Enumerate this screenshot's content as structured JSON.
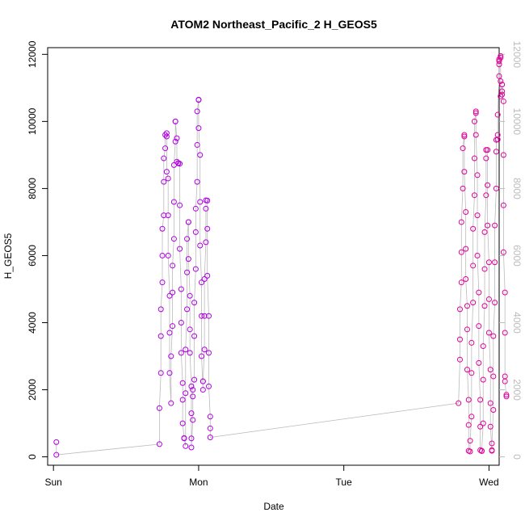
{
  "chart_data": {
    "type": "scatter",
    "title": "ATOM2 Northeast_Pacific_2 H_GEOS5",
    "xlabel": "Date",
    "ylabel": "H_GEOS5",
    "x_unit": "days",
    "xlim": [
      -0.04,
      3.07
    ],
    "ylim": [
      -250,
      12200
    ],
    "x_ticks": [
      {
        "value": 0,
        "label": "Sun"
      },
      {
        "value": 1,
        "label": "Mon"
      },
      {
        "value": 2,
        "label": "Tue"
      },
      {
        "value": 3,
        "label": "Wed"
      }
    ],
    "y_ticks": [
      0,
      2000,
      4000,
      6000,
      8000,
      10000,
      12000
    ],
    "y_ticks_right": [
      0,
      2000,
      4000,
      6000,
      8000,
      10000,
      12000
    ],
    "grid": false,
    "legend": "none",
    "colors": {
      "line": "#bbbbbb",
      "point_early": "#b000e0",
      "point_late": "#e0009a",
      "right_axis": "#bbbbbb"
    },
    "series": [
      {
        "values": [
          [
            0.02,
            440
          ],
          [
            0.02,
            60
          ],
          [
            0.73,
            380
          ],
          [
            0.73,
            1450
          ],
          [
            0.74,
            2500
          ],
          [
            0.74,
            3600
          ],
          [
            0.74,
            4400
          ],
          [
            0.75,
            5200
          ],
          [
            0.75,
            6000
          ],
          [
            0.75,
            6800
          ],
          [
            0.76,
            7200
          ],
          [
            0.76,
            8200
          ],
          [
            0.76,
            8900
          ],
          [
            0.77,
            9200
          ],
          [
            0.77,
            9600
          ],
          [
            0.78,
            9650
          ],
          [
            0.78,
            9550
          ],
          [
            0.78,
            8500
          ],
          [
            0.79,
            8300
          ],
          [
            0.79,
            7200
          ],
          [
            0.79,
            6000
          ],
          [
            0.8,
            4800
          ],
          [
            0.8,
            3700
          ],
          [
            0.8,
            2500
          ],
          [
            0.81,
            1600
          ],
          [
            0.81,
            3000
          ],
          [
            0.82,
            3900
          ],
          [
            0.82,
            4900
          ],
          [
            0.82,
            5700
          ],
          [
            0.83,
            6500
          ],
          [
            0.83,
            7600
          ],
          [
            0.83,
            8700
          ],
          [
            0.84,
            9400
          ],
          [
            0.84,
            10000
          ],
          [
            0.84,
            10000
          ],
          [
            0.85,
            9500
          ],
          [
            0.85,
            8800
          ],
          [
            0.86,
            8750
          ],
          [
            0.86,
            8760
          ],
          [
            0.87,
            8740
          ],
          [
            0.87,
            7500
          ],
          [
            0.87,
            6200
          ],
          [
            0.88,
            5000
          ],
          [
            0.88,
            4000
          ],
          [
            0.88,
            3100
          ],
          [
            0.89,
            2200
          ],
          [
            0.89,
            1700
          ],
          [
            0.89,
            1000
          ],
          [
            0.9,
            560
          ],
          [
            0.9,
            550
          ],
          [
            0.91,
            320
          ],
          [
            0.91,
            1900
          ],
          [
            0.91,
            3200
          ],
          [
            0.92,
            4400
          ],
          [
            0.92,
            5500
          ],
          [
            0.92,
            6500
          ],
          [
            0.93,
            7000
          ],
          [
            0.93,
            7000
          ],
          [
            0.93,
            5900
          ],
          [
            0.94,
            4800
          ],
          [
            0.94,
            3800
          ],
          [
            0.94,
            3100
          ],
          [
            0.95,
            2100
          ],
          [
            0.95,
            1300
          ],
          [
            0.95,
            550
          ],
          [
            0.95,
            280
          ],
          [
            0.96,
            1100
          ],
          [
            0.96,
            1800
          ],
          [
            0.96,
            2000
          ],
          [
            0.97,
            2300
          ],
          [
            0.97,
            3600
          ],
          [
            0.97,
            4600
          ],
          [
            0.98,
            5600
          ],
          [
            0.98,
            6700
          ],
          [
            0.98,
            7400
          ],
          [
            0.99,
            8200
          ],
          [
            0.99,
            9300
          ],
          [
            0.99,
            10300
          ],
          [
            1.0,
            10650
          ],
          [
            1.0,
            10640
          ],
          [
            1.0,
            9800
          ],
          [
            1.01,
            9000
          ],
          [
            1.01,
            7600
          ],
          [
            1.01,
            6300
          ],
          [
            1.02,
            5200
          ],
          [
            1.02,
            4200
          ],
          [
            1.02,
            3000
          ],
          [
            1.03,
            2000
          ],
          [
            1.03,
            2250
          ],
          [
            1.03,
            2250
          ],
          [
            1.04,
            3200
          ],
          [
            1.04,
            4200
          ],
          [
            1.04,
            5300
          ],
          [
            1.05,
            6400
          ],
          [
            1.05,
            7400
          ],
          [
            1.05,
            7650
          ],
          [
            1.06,
            7640
          ],
          [
            1.06,
            6800
          ],
          [
            1.06,
            5400
          ],
          [
            1.07,
            4200
          ],
          [
            1.07,
            3100
          ],
          [
            1.07,
            2100
          ],
          [
            1.08,
            1200
          ],
          [
            1.08,
            850
          ],
          [
            1.08,
            580
          ],
          [
            2.79,
            1600
          ],
          [
            2.8,
            2900
          ],
          [
            2.8,
            3500
          ],
          [
            2.8,
            4400
          ],
          [
            2.81,
            5200
          ],
          [
            2.81,
            6100
          ],
          [
            2.81,
            7000
          ],
          [
            2.82,
            8000
          ],
          [
            2.82,
            9200
          ],
          [
            2.83,
            9600
          ],
          [
            2.83,
            9550
          ],
          [
            2.83,
            8500
          ],
          [
            2.84,
            7300
          ],
          [
            2.84,
            6200
          ],
          [
            2.84,
            5300
          ],
          [
            2.85,
            4500
          ],
          [
            2.85,
            3800
          ],
          [
            2.85,
            2600
          ],
          [
            2.86,
            1700
          ],
          [
            2.86,
            950
          ],
          [
            2.86,
            180
          ],
          [
            2.87,
            160
          ],
          [
            2.87,
            480
          ],
          [
            2.88,
            1200
          ],
          [
            2.88,
            2500
          ],
          [
            2.88,
            3400
          ],
          [
            2.89,
            4600
          ],
          [
            2.89,
            5700
          ],
          [
            2.89,
            6800
          ],
          [
            2.9,
            7800
          ],
          [
            2.9,
            8900
          ],
          [
            2.9,
            10000
          ],
          [
            2.91,
            10300
          ],
          [
            2.91,
            10250
          ],
          [
            2.91,
            9600
          ],
          [
            2.92,
            8400
          ],
          [
            2.92,
            7200
          ],
          [
            2.92,
            6000
          ],
          [
            2.93,
            4900
          ],
          [
            2.93,
            3900
          ],
          [
            2.93,
            2800
          ],
          [
            2.94,
            1700
          ],
          [
            2.94,
            900
          ],
          [
            2.94,
            200
          ],
          [
            2.95,
            170
          ],
          [
            2.95,
            180
          ],
          [
            2.96,
            1000
          ],
          [
            2.96,
            2300
          ],
          [
            2.96,
            3300
          ],
          [
            2.97,
            4500
          ],
          [
            2.97,
            5600
          ],
          [
            2.97,
            6700
          ],
          [
            2.98,
            7800
          ],
          [
            2.98,
            8900
          ],
          [
            2.98,
            9150
          ],
          [
            2.99,
            9150
          ],
          [
            2.99,
            8100
          ],
          [
            2.99,
            6900
          ],
          [
            3.0,
            5800
          ],
          [
            3.0,
            4700
          ],
          [
            3.0,
            3700
          ],
          [
            3.01,
            2600
          ],
          [
            3.01,
            1600
          ],
          [
            3.01,
            900
          ],
          [
            3.02,
            180
          ],
          [
            3.02,
            200
          ],
          [
            3.02,
            400
          ],
          [
            3.03,
            1400
          ],
          [
            3.03,
            2400
          ],
          [
            3.03,
            3600
          ],
          [
            3.04,
            4600
          ],
          [
            3.04,
            5800
          ],
          [
            3.04,
            6900
          ],
          [
            3.05,
            8000
          ],
          [
            3.05,
            9100
          ],
          [
            3.05,
            9450
          ],
          [
            3.06,
            9460
          ],
          [
            3.06,
            9600
          ],
          [
            3.06,
            10200
          ],
          [
            3.07,
            11350
          ],
          [
            3.07,
            11700
          ],
          [
            3.07,
            11800
          ],
          [
            3.07,
            11850
          ],
          [
            3.08,
            11900
          ],
          [
            3.08,
            11950
          ],
          [
            3.08,
            11200
          ],
          [
            3.08,
            10750
          ],
          [
            3.09,
            10800
          ],
          [
            3.09,
            10900
          ],
          [
            3.09,
            11100
          ],
          [
            3.09,
            11100
          ],
          [
            3.1,
            10600
          ],
          [
            3.1,
            9000
          ],
          [
            3.1,
            7500
          ],
          [
            3.1,
            6100
          ],
          [
            3.11,
            4900
          ],
          [
            3.11,
            3700
          ],
          [
            3.11,
            2400
          ],
          [
            3.11,
            2250
          ],
          [
            3.12,
            1800
          ],
          [
            3.12,
            1850
          ]
        ]
      }
    ]
  }
}
